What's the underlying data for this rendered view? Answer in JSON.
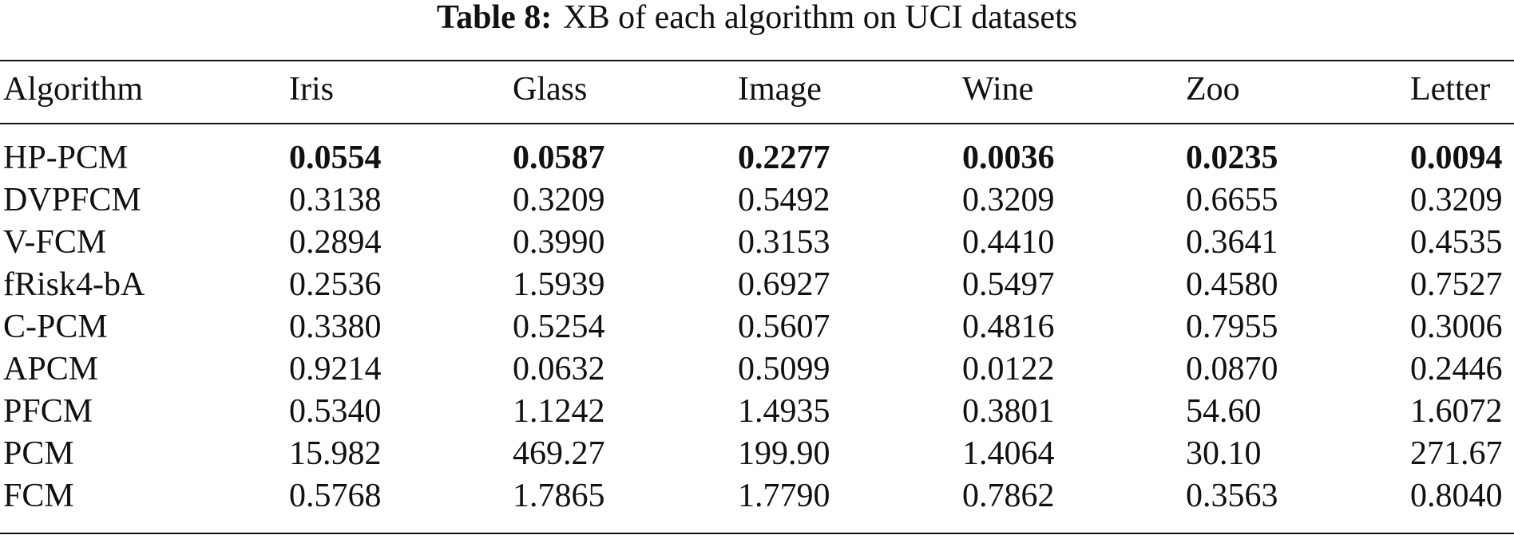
{
  "caption": {
    "label": "Table 8:",
    "text": "XB of each algorithm on UCI datasets"
  },
  "table": {
    "header": [
      "Algorithm",
      "Iris",
      "Glass",
      "Image",
      "Wine",
      "Zoo",
      "Letter"
    ],
    "rows": [
      [
        "HP-PCM",
        "0.0554",
        "0.0587",
        "0.2277",
        "0.0036",
        "0.0235",
        "0.0094"
      ],
      [
        "DVPFCM",
        "0.3138",
        "0.3209",
        "0.5492",
        "0.3209",
        "0.6655",
        "0.3209"
      ],
      [
        "V-FCM",
        "0.2894",
        "0.3990",
        "0.3153",
        "0.4410",
        "0.3641",
        "0.4535"
      ],
      [
        "fRisk4-bA",
        "0.2536",
        "1.5939",
        "0.6927",
        "0.5497",
        "0.4580",
        "0.7527"
      ],
      [
        "C-PCM",
        "0.3380",
        "0.5254",
        "0.5607",
        "0.4816",
        "0.7955",
        "0.3006"
      ],
      [
        "APCM",
        "0.9214",
        "0.0632",
        "0.5099",
        "0.0122",
        "0.0870",
        "0.2446"
      ],
      [
        "PFCM",
        "0.5340",
        "1.1242",
        "1.4935",
        "0.3801",
        "54.60",
        "1.6072"
      ],
      [
        "PCM",
        "15.982",
        "469.27",
        "199.90",
        "1.4064",
        "30.10",
        "271.67"
      ],
      [
        "FCM",
        "0.5768",
        "1.7865",
        "1.7790",
        "0.7862",
        "0.3563",
        "0.8040"
      ]
    ]
  }
}
